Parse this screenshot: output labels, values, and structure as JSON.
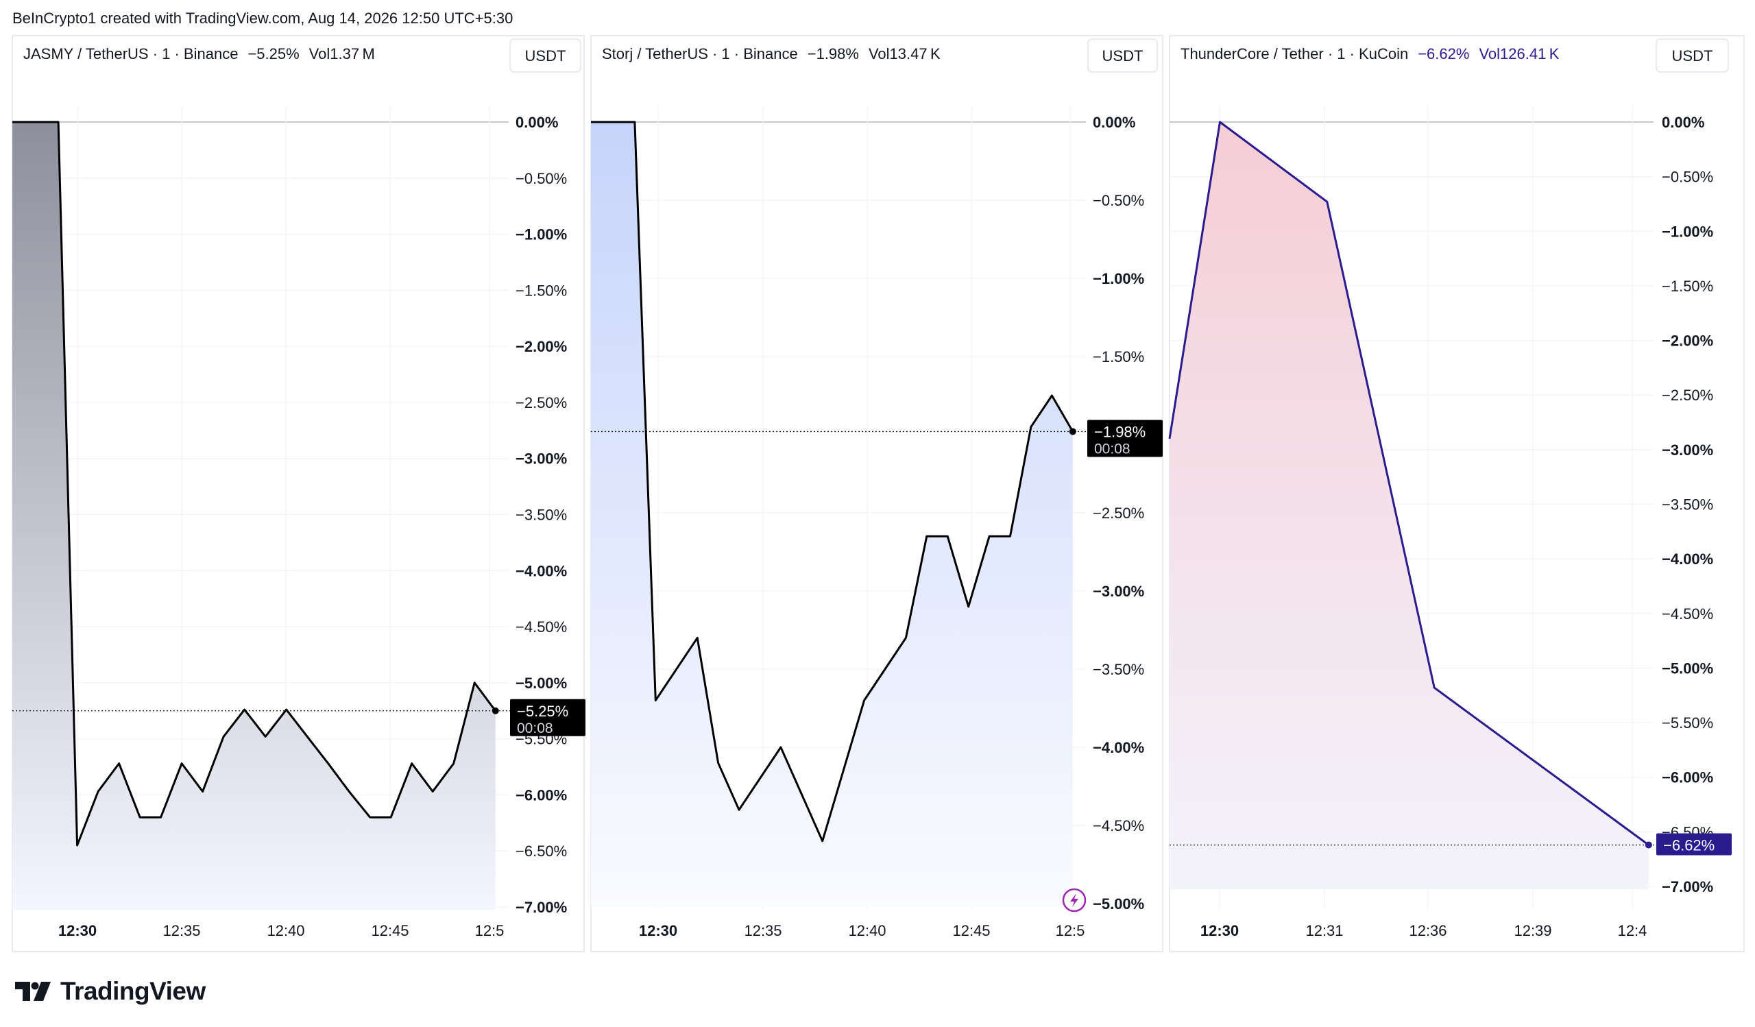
{
  "header": {
    "text": "BeInCrypto1 created with TradingView.com, Aug 14, 2026 12:50 UTC+5:30"
  },
  "brand": {
    "name": "TradingView"
  },
  "chart_data": [
    {
      "type": "area",
      "symbol": "JASMY / TetherUS · 1 · Binance",
      "change": "−5.25%",
      "volume": "Vol1.37 M",
      "currency": "USDT",
      "x_ticks": [
        "12:30",
        "12:35",
        "12:40",
        "12:45",
        "12:5"
      ],
      "y_ticks": [
        "0.00%",
        "−0.50%",
        "−1.00%",
        "−1.50%",
        "−2.00%",
        "−2.50%",
        "−3.00%",
        "−3.50%",
        "−4.00%",
        "−4.50%",
        "−5.00%",
        "−5.50%",
        "−6.00%",
        "−6.50%",
        "−7.00%"
      ],
      "ylim": [
        -7.0,
        0.0
      ],
      "xlim": [
        -3.1,
        20.5
      ],
      "x_unit": "minutes after 12:30",
      "points": [
        [
          -3.1,
          0
        ],
        [
          -0.9,
          0
        ],
        [
          0,
          -6.45
        ],
        [
          1,
          -5.97
        ],
        [
          2,
          -5.72
        ],
        [
          3,
          -6.2
        ],
        [
          4,
          -6.2
        ],
        [
          5,
          -5.72
        ],
        [
          6,
          -5.97
        ],
        [
          7,
          -5.48
        ],
        [
          8,
          -5.24
        ],
        [
          9,
          -5.48
        ],
        [
          10,
          -5.24
        ],
        [
          11,
          -5.48
        ],
        [
          12,
          -5.72
        ],
        [
          13,
          -5.97
        ],
        [
          14,
          -6.2
        ],
        [
          15,
          -6.2
        ],
        [
          16,
          -5.72
        ],
        [
          17,
          -5.97
        ],
        [
          18,
          -5.72
        ],
        [
          19,
          -5.0
        ],
        [
          20,
          -5.25
        ]
      ],
      "last": {
        "value": -5.25,
        "label": "−5.25%",
        "countdown": "00:08"
      },
      "line_color": "#000000",
      "fill_top": "#8d909c",
      "fill_bottom": "#f4f6ff",
      "label_bg": "#000000"
    },
    {
      "type": "area",
      "symbol": "Storj / TetherUS · 1 · Binance",
      "change": "−1.98%",
      "volume": "Vol13.47 K",
      "currency": "USDT",
      "x_ticks": [
        "12:30",
        "12:35",
        "12:40",
        "12:45",
        "12:5"
      ],
      "y_ticks": [
        "0.00%",
        "−0.50%",
        "−1.00%",
        "−1.50%",
        "−2.00%",
        "−2.50%",
        "−3.00%",
        "−3.50%",
        "−4.00%",
        "−4.50%",
        "−5.00%"
      ],
      "ylim": [
        -5.0,
        0.0
      ],
      "xlim": [
        -3.1,
        20.5
      ],
      "x_unit": "minutes after 12:30",
      "points": [
        [
          -3.1,
          0
        ],
        [
          -1,
          0
        ],
        [
          0,
          -3.7
        ],
        [
          2,
          -3.3
        ],
        [
          3,
          -4.1
        ],
        [
          4,
          -4.4
        ],
        [
          6,
          -4.0
        ],
        [
          7,
          -4.3
        ],
        [
          8,
          -4.6
        ],
        [
          10,
          -3.7
        ],
        [
          12,
          -3.3
        ],
        [
          13,
          -2.65
        ],
        [
          14,
          -2.65
        ],
        [
          15,
          -3.1
        ],
        [
          16,
          -2.65
        ],
        [
          17,
          -2.65
        ],
        [
          18,
          -1.95
        ],
        [
          19,
          -1.75
        ],
        [
          20,
          -1.98
        ]
      ],
      "last": {
        "value": -1.98,
        "label": "−1.98%",
        "countdown": "00:08"
      },
      "line_color": "#000000",
      "fill_top": "#c6d4fb",
      "fill_bottom": "#fafbff",
      "label_bg": "#000000"
    },
    {
      "type": "area",
      "symbol": "ThunderCore / Tether · 1 · KuCoin",
      "change": "−6.62%",
      "volume": "Vol126.41 K",
      "currency": "USDT",
      "x_ticks": [
        "12:30",
        "12:31",
        "12:36",
        "12:39",
        "12:4"
      ],
      "y_ticks": [
        "0.00%",
        "−0.50%",
        "−1.00%",
        "−1.50%",
        "−2.00%",
        "−2.50%",
        "−3.00%",
        "−3.50%",
        "−4.00%",
        "−4.50%",
        "−5.00%",
        "−5.50%",
        "−6.00%",
        "−6.50%",
        "−7.00%"
      ],
      "ylim": [
        -7.0,
        0.0
      ],
      "xlim": [
        -0.47,
        4.02
      ],
      "x_unit": "bar index from the 12:30 bar",
      "points": [
        [
          -0.47,
          -2.9
        ],
        [
          0,
          0
        ],
        [
          1,
          -0.73
        ],
        [
          2,
          -5.18
        ],
        [
          4,
          -6.62
        ]
      ],
      "last": {
        "value": -6.62,
        "label": "−6.62%",
        "countdown": ""
      },
      "line_color": "#2a1b8e",
      "fill_top": "#f5cdd6",
      "fill_bottom": "#f3f3fb",
      "label_bg": "#2a1b8e",
      "header_value_color": "#2a1b8e"
    }
  ]
}
